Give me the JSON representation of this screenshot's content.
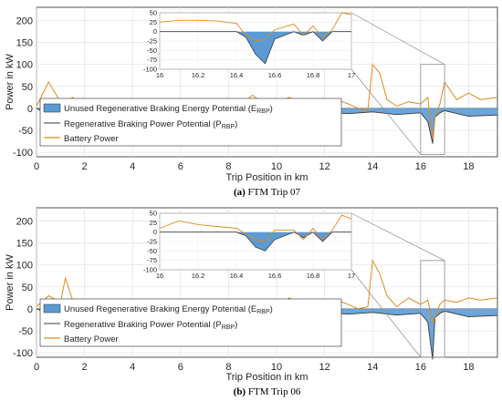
{
  "chart_data": [
    {
      "type": "line",
      "caption_letter": "(a)",
      "caption_text": " FTM Trip 07",
      "xlabel": "Trip Position in km",
      "ylabel": "Power in kW",
      "xlim": [
        0,
        19.2
      ],
      "ylim": [
        -110,
        230
      ],
      "xticks": [
        "0",
        "2",
        "4",
        "6",
        "8",
        "10",
        "12",
        "14",
        "16",
        "18"
      ],
      "yticks": [
        "200",
        "150",
        "100",
        "50",
        "0",
        "-50",
        "-100"
      ],
      "grid": true,
      "legend_position": "bottom-left",
      "legend": [
        "Unused Regenerative Braking Energy Potential (E",
        "RBP",
        ")",
        "Regenerative Braking Power Potential (P",
        "RBP",
        ")",
        "Battery Power"
      ],
      "colors": {
        "battery": "#E08A1E",
        "potential": "#3A3A3A",
        "unused": "#5B9BD5"
      },
      "series": [
        {
          "name": "Battery Power",
          "x": [
            0,
            0.5,
            1.0,
            1.2,
            1.5,
            2.0,
            2.5,
            3.0,
            3.5,
            4.0,
            4.5,
            5.0,
            5.5,
            6.0,
            6.5,
            7.0,
            7.5,
            8.0,
            8.5,
            9.0,
            9.5,
            10.0,
            10.5,
            11.0,
            11.5,
            12.0,
            12.5,
            13.0,
            13.4,
            13.8,
            14.0,
            14.3,
            14.6,
            15.0,
            15.5,
            16.0,
            16.3,
            16.5,
            16.6,
            16.8,
            17.0,
            17.5,
            18.0,
            18.5,
            19.2
          ],
          "y": [
            5,
            60,
            15,
            10,
            25,
            5,
            8,
            15,
            5,
            10,
            5,
            12,
            6,
            20,
            10,
            15,
            5,
            12,
            8,
            30,
            10,
            5,
            25,
            15,
            10,
            -40,
            20,
            10,
            0,
            -5,
            100,
            80,
            20,
            5,
            15,
            10,
            25,
            -70,
            -20,
            10,
            60,
            20,
            35,
            20,
            25
          ]
        },
        {
          "name": "Regenerative Braking Power Potential",
          "x": [
            0,
            0.5,
            1.0,
            2.0,
            3.0,
            4.0,
            5.0,
            6.0,
            7.0,
            8.0,
            9.0,
            10.0,
            11.0,
            12.0,
            12.2,
            12.4,
            13.0,
            14.0,
            15.0,
            16.0,
            16.3,
            16.5,
            16.6,
            16.8,
            17.0,
            18.0,
            19.2
          ],
          "y": [
            0,
            -15,
            -10,
            -12,
            -15,
            -10,
            -12,
            -14,
            -18,
            -16,
            -15,
            -25,
            -14,
            -20,
            -40,
            -10,
            -12,
            -8,
            -14,
            -10,
            -30,
            -80,
            -20,
            -10,
            -5,
            -18,
            -15
          ]
        }
      ],
      "inset": {
        "xlim": [
          16,
          17
        ],
        "ylim": [
          -100,
          50
        ],
        "xticks": [
          "16",
          "16.2",
          "16.4",
          "16.6",
          "16.8",
          "17"
        ],
        "yticks": [
          "50",
          "25",
          "0",
          "-25",
          "-50",
          "-75",
          "-100"
        ],
        "x": [
          16.0,
          16.1,
          16.2,
          16.3,
          16.4,
          16.45,
          16.5,
          16.55,
          16.6,
          16.7,
          16.75,
          16.8,
          16.85,
          16.9,
          16.95,
          17.0
        ],
        "battery": [
          25,
          30,
          30,
          28,
          22,
          -10,
          -25,
          -20,
          5,
          20,
          -10,
          15,
          -15,
          5,
          50,
          45
        ],
        "potential": [
          0,
          0,
          0,
          0,
          0,
          -15,
          -60,
          -85,
          -20,
          0,
          -10,
          0,
          -25,
          0,
          0,
          0
        ]
      }
    },
    {
      "type": "line",
      "caption_letter": "(b)",
      "caption_text": " FTM Trip 06",
      "xlabel": "Trip Position in km",
      "ylabel": "Power in kW",
      "xlim": [
        0,
        19.2
      ],
      "ylim": [
        -110,
        230
      ],
      "xticks": [
        "0",
        "2",
        "4",
        "6",
        "8",
        "10",
        "12",
        "14",
        "16",
        "18"
      ],
      "yticks": [
        "200",
        "150",
        "100",
        "50",
        "0",
        "-50",
        "-100"
      ],
      "grid": true,
      "legend_position": "bottom-left",
      "legend": [
        "Unused Regenerative Braking Energy Potential (E",
        "RBP",
        ")",
        "Regenerative Braking Power Potential (P",
        "RBP",
        ")",
        "Battery Power"
      ],
      "colors": {
        "battery": "#E08A1E",
        "potential": "#3A3A3A",
        "unused": "#5B9BD5"
      },
      "series": [
        {
          "name": "Battery Power",
          "x": [
            0,
            0.5,
            1.0,
            1.2,
            1.5,
            2.0,
            2.5,
            3.0,
            3.5,
            4.0,
            4.5,
            5.0,
            5.5,
            6.0,
            6.5,
            7.0,
            7.5,
            8.0,
            8.5,
            9.0,
            9.5,
            10.0,
            10.5,
            11.0,
            11.5,
            12.0,
            12.5,
            13.0,
            13.4,
            13.8,
            14.0,
            14.3,
            14.6,
            15.0,
            15.5,
            16.0,
            16.3,
            16.5,
            16.6,
            16.8,
            17.0,
            17.5,
            18.0,
            18.5,
            19.2
          ],
          "y": [
            5,
            30,
            15,
            70,
            20,
            5,
            10,
            15,
            5,
            10,
            5,
            15,
            5,
            10,
            10,
            15,
            5,
            12,
            8,
            20,
            10,
            -50,
            25,
            15,
            10,
            5,
            20,
            10,
            0,
            5,
            110,
            80,
            30,
            5,
            25,
            10,
            20,
            -30,
            -20,
            10,
            20,
            15,
            25,
            20,
            25
          ]
        },
        {
          "name": "Regenerative Braking Power Potential",
          "x": [
            0,
            0.5,
            1.0,
            2.0,
            3.0,
            4.0,
            5.0,
            6.0,
            7.0,
            8.0,
            9.0,
            10.0,
            11.0,
            12.0,
            12.2,
            12.4,
            13.0,
            14.0,
            15.0,
            16.0,
            16.3,
            16.5,
            16.6,
            16.8,
            17.0,
            18.0,
            19.2
          ],
          "y": [
            0,
            -10,
            -12,
            -15,
            -12,
            -10,
            -12,
            -14,
            -15,
            -16,
            -15,
            -55,
            -14,
            -18,
            -20,
            -10,
            -12,
            -8,
            -14,
            -10,
            -30,
            -115,
            -20,
            -10,
            -5,
            -18,
            -15
          ]
        }
      ],
      "inset": {
        "xlim": [
          16,
          17
        ],
        "ylim": [
          -100,
          50
        ],
        "xticks": [
          "16",
          "16.2",
          "16.4",
          "16.6",
          "16.8",
          "17"
        ],
        "yticks": [
          "50",
          "25",
          "0",
          "-25",
          "-50",
          "-75",
          "-100"
        ],
        "x": [
          16.0,
          16.1,
          16.2,
          16.3,
          16.4,
          16.45,
          16.5,
          16.55,
          16.6,
          16.7,
          16.75,
          16.8,
          16.85,
          16.9,
          16.95,
          17.0
        ],
        "battery": [
          10,
          30,
          20,
          15,
          10,
          -5,
          -20,
          -25,
          5,
          5,
          -20,
          10,
          -20,
          5,
          45,
          35
        ],
        "potential": [
          0,
          0,
          0,
          0,
          0,
          -10,
          -40,
          -50,
          -20,
          0,
          -15,
          0,
          -25,
          0,
          0,
          0
        ]
      }
    }
  ]
}
